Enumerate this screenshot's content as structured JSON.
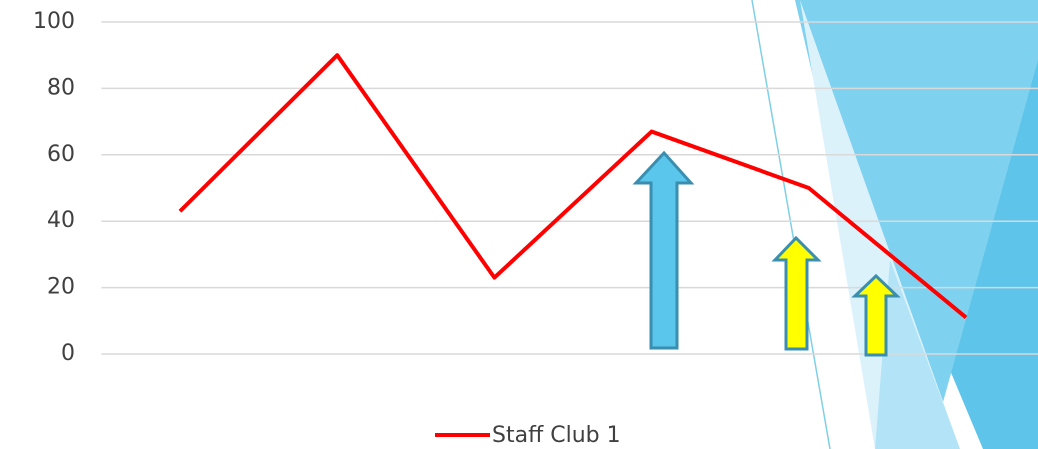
{
  "chart_data": {
    "type": "line",
    "series": [
      {
        "name": "Staff Club 1",
        "color": "#ff0000",
        "values": [
          43,
          90,
          23,
          67,
          50,
          11
        ]
      }
    ],
    "ylim": [
      0,
      100
    ],
    "yticks": [
      0,
      20,
      40,
      60,
      80,
      100
    ],
    "grid": true,
    "legend": "bottom"
  }
}
